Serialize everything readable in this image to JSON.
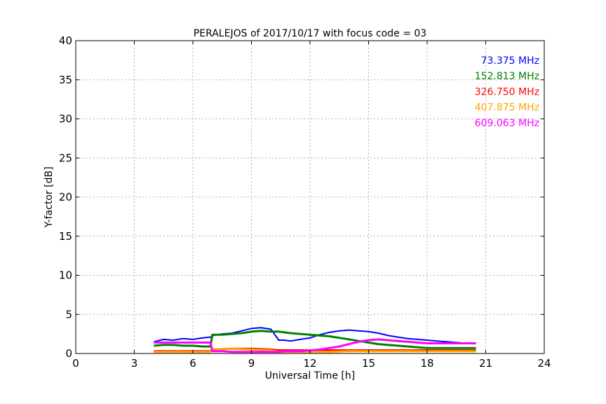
{
  "chart_data": {
    "type": "line",
    "title": "PERALEJOS of 2017/10/17 with focus code = 03",
    "xlabel": "Universal Time [h]",
    "ylabel": "Y-factor [dB]",
    "xlim": [
      0,
      24
    ],
    "ylim": [
      0,
      40
    ],
    "xticks": [
      0,
      3,
      6,
      9,
      12,
      15,
      18,
      21,
      24
    ],
    "yticks": [
      0,
      5,
      10,
      15,
      20,
      25,
      30,
      35,
      40
    ],
    "grid": true,
    "legend_position": "top-right",
    "series": [
      {
        "name": "73.375 MHz",
        "color": "#0000ff",
        "x": [
          4.0,
          4.5,
          5.0,
          5.5,
          6.0,
          6.5,
          6.9,
          7.0,
          7.5,
          8.0,
          8.5,
          9.0,
          9.5,
          10.0,
          10.4,
          10.7,
          11.0,
          11.5,
          12.0,
          12.5,
          13.0,
          13.5,
          14.0,
          14.5,
          15.0,
          15.5,
          16.0,
          16.5,
          17.0,
          17.5,
          18.0,
          18.5,
          19.0,
          19.5,
          20.0,
          20.5
        ],
        "values": [
          1.5,
          1.8,
          1.7,
          1.9,
          1.8,
          2.0,
          2.1,
          2.3,
          2.5,
          2.6,
          2.9,
          3.2,
          3.3,
          3.1,
          1.7,
          1.7,
          1.6,
          1.8,
          2.0,
          2.4,
          2.7,
          2.9,
          3.0,
          2.9,
          2.8,
          2.6,
          2.3,
          2.1,
          1.9,
          1.8,
          1.7,
          1.6,
          1.5,
          1.4,
          1.3,
          1.3
        ]
      },
      {
        "name": "152.813 MHz",
        "color": "#008000",
        "x": [
          4.0,
          4.5,
          5.0,
          5.5,
          6.0,
          6.5,
          6.9,
          7.0,
          7.5,
          8.0,
          8.5,
          9.0,
          9.5,
          10.0,
          10.4,
          10.7,
          11.0,
          11.5,
          12.0,
          12.5,
          13.0,
          13.5,
          14.0,
          14.5,
          15.0,
          15.5,
          16.0,
          16.5,
          17.0,
          17.5,
          18.0,
          18.5,
          19.0,
          19.5,
          20.0,
          20.5
        ],
        "values": [
          1.0,
          1.1,
          1.1,
          1.0,
          1.0,
          0.9,
          0.9,
          2.4,
          2.4,
          2.5,
          2.6,
          2.8,
          2.9,
          2.8,
          2.8,
          2.7,
          2.6,
          2.5,
          2.4,
          2.3,
          2.2,
          2.0,
          1.8,
          1.6,
          1.4,
          1.2,
          1.1,
          1.0,
          0.9,
          0.8,
          0.7,
          0.7,
          0.7,
          0.7,
          0.7,
          0.7
        ]
      },
      {
        "name": "326.750 MHz",
        "color": "#ff0000",
        "x": [
          4.0,
          5.0,
          6.0,
          6.9,
          7.0,
          8.0,
          9.0,
          10.0,
          10.4,
          11.0,
          12.0,
          13.0,
          14.0,
          15.0,
          16.0,
          17.0,
          18.0,
          19.0,
          20.0,
          20.5
        ],
        "values": [
          0.3,
          0.3,
          0.3,
          0.3,
          0.5,
          0.6,
          0.6,
          0.5,
          0.4,
          0.4,
          0.4,
          0.4,
          0.4,
          0.4,
          0.4,
          0.4,
          0.4,
          0.4,
          0.4,
          0.4
        ]
      },
      {
        "name": "407.875 MHz",
        "color": "#ffa500",
        "x": [
          4.0,
          5.0,
          6.0,
          6.9,
          7.0,
          8.0,
          9.0,
          10.0,
          10.4,
          11.0,
          12.0,
          13.0,
          14.0,
          15.0,
          16.0,
          17.0,
          18.0,
          19.0,
          20.0,
          20.5
        ],
        "values": [
          0.2,
          0.2,
          0.2,
          0.2,
          0.5,
          0.6,
          0.5,
          0.4,
          0.2,
          0.2,
          0.2,
          0.2,
          0.3,
          0.3,
          0.3,
          0.3,
          0.3,
          0.3,
          0.3,
          0.3
        ]
      },
      {
        "name": "609.063 MHz",
        "color": "#ff00ff",
        "x": [
          4.0,
          4.5,
          5.0,
          5.5,
          6.0,
          6.5,
          6.9,
          7.0,
          7.5,
          8.0,
          8.5,
          9.0,
          9.5,
          10.0,
          10.4,
          10.7,
          11.0,
          11.5,
          12.0,
          12.5,
          13.0,
          13.5,
          14.0,
          14.5,
          15.0,
          15.5,
          16.0,
          16.5,
          17.0,
          17.5,
          18.0,
          18.5,
          19.0,
          19.5,
          20.0,
          20.5
        ],
        "values": [
          1.4,
          1.4,
          1.4,
          1.4,
          1.4,
          1.4,
          1.4,
          0.3,
          0.3,
          0.2,
          0.2,
          0.2,
          0.2,
          0.2,
          0.2,
          0.3,
          0.3,
          0.3,
          0.4,
          0.5,
          0.7,
          0.9,
          1.2,
          1.5,
          1.7,
          1.8,
          1.7,
          1.6,
          1.5,
          1.4,
          1.3,
          1.3,
          1.3,
          1.3,
          1.3,
          1.3
        ]
      }
    ]
  }
}
